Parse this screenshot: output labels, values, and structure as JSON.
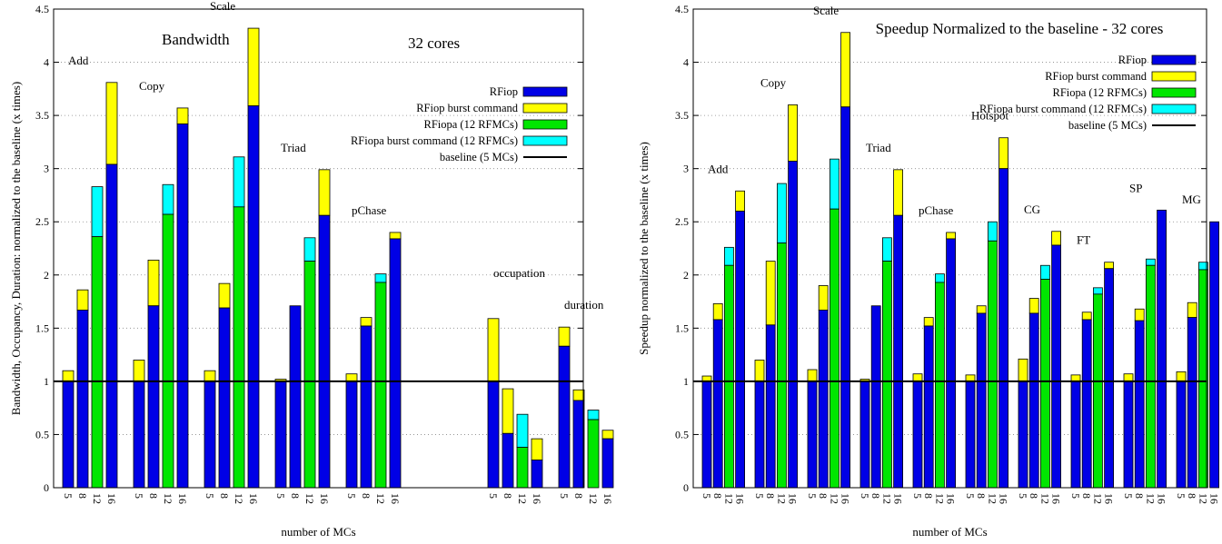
{
  "chart_data": [
    {
      "type": "bar",
      "stacked": true,
      "title": "Bandwidth",
      "subtitle": "32 cores",
      "xlabel": "number of MCs",
      "ylabel": "Bandwidth, Occupancy, Duration: normalized to the baseline (x times)",
      "ylim": [
        0,
        4.5
      ],
      "yticks": [
        "0",
        "0.5",
        "1",
        "1.5",
        "2",
        "2.5",
        "3",
        "3.5",
        "4",
        "4.5"
      ],
      "grid": true,
      "legend_position": "top-right",
      "legend": [
        "RFiop",
        "RFiop burst command",
        "RFiopa (12 RFMCs)",
        "RFiopa burst command (12 RFMCs)",
        "baseline (5 MCs)"
      ],
      "baseline": 1,
      "groups": [
        {
          "label": "Add",
          "bars": [
            {
              "mc": "5",
              "base": 1.0,
              "burst": 1.1,
              "color": "blue"
            },
            {
              "mc": "8",
              "base": 1.67,
              "burst": 1.86,
              "color": "blue"
            },
            {
              "mc": "12",
              "base": 2.36,
              "burst": 2.83,
              "color": "green"
            },
            {
              "mc": "16",
              "base": 3.04,
              "burst": 3.81,
              "color": "blue"
            }
          ]
        },
        {
          "label": "Copy",
          "bars": [
            {
              "mc": "5",
              "base": 1.0,
              "burst": 1.2,
              "color": "blue"
            },
            {
              "mc": "8",
              "base": 1.71,
              "burst": 2.14,
              "color": "blue"
            },
            {
              "mc": "12",
              "base": 2.57,
              "burst": 2.85,
              "color": "green"
            },
            {
              "mc": "16",
              "base": 3.42,
              "burst": 3.57,
              "color": "blue"
            }
          ]
        },
        {
          "label": "Scale",
          "bars": [
            {
              "mc": "5",
              "base": 1.0,
              "burst": 1.1,
              "color": "blue"
            },
            {
              "mc": "8",
              "base": 1.69,
              "burst": 1.92,
              "color": "blue"
            },
            {
              "mc": "12",
              "base": 2.64,
              "burst": 3.11,
              "color": "green"
            },
            {
              "mc": "16",
              "base": 3.59,
              "burst": 4.32,
              "color": "blue"
            }
          ]
        },
        {
          "label": "Triad",
          "bars": [
            {
              "mc": "5",
              "base": 1.0,
              "burst": 1.02,
              "color": "blue"
            },
            {
              "mc": "8",
              "base": 1.71,
              "burst": 1.71,
              "color": "blue"
            },
            {
              "mc": "12",
              "base": 2.13,
              "burst": 2.35,
              "color": "green"
            },
            {
              "mc": "16",
              "base": 2.56,
              "burst": 2.99,
              "color": "blue"
            }
          ]
        },
        {
          "label": "pChase",
          "bars": [
            {
              "mc": "5",
              "base": 1.0,
              "burst": 1.07,
              "color": "blue"
            },
            {
              "mc": "8",
              "base": 1.52,
              "burst": 1.6,
              "color": "blue"
            },
            {
              "mc": "12",
              "base": 1.93,
              "burst": 2.01,
              "color": "green"
            },
            {
              "mc": "16",
              "base": 2.34,
              "burst": 2.4,
              "color": "blue"
            }
          ]
        },
        {
          "label": "",
          "bars": [
            {
              "mc": "",
              "base": 0,
              "burst": 0,
              "color": "blue"
            },
            {
              "mc": "",
              "base": 0,
              "burst": 0,
              "color": "blue"
            },
            {
              "mc": "",
              "base": 0,
              "burst": 0,
              "color": "green"
            },
            {
              "mc": "",
              "base": 0,
              "burst": 0,
              "color": "blue"
            }
          ]
        },
        {
          "label": "occupation",
          "bars": [
            {
              "mc": "5",
              "base": 1.0,
              "burst": 1.59,
              "color": "blue"
            },
            {
              "mc": "8",
              "base": 0.51,
              "burst": 0.93,
              "color": "blue"
            },
            {
              "mc": "12",
              "base": 0.38,
              "burst": 0.69,
              "color": "green"
            },
            {
              "mc": "16",
              "base": 0.26,
              "burst": 0.46,
              "color": "blue"
            }
          ]
        },
        {
          "label": "duration",
          "bars": [
            {
              "mc": "5",
              "base": 1.33,
              "burst": 1.51,
              "color": "blue"
            },
            {
              "mc": "8",
              "base": 0.82,
              "burst": 0.92,
              "color": "blue"
            },
            {
              "mc": "12",
              "base": 0.64,
              "burst": 0.73,
              "color": "green"
            },
            {
              "mc": "16",
              "base": 0.46,
              "burst": 0.54,
              "color": "blue"
            }
          ]
        }
      ]
    },
    {
      "type": "bar",
      "stacked": true,
      "title": "Speedup Normalized to the baseline - 32 cores",
      "xlabel": "number of MCs",
      "ylabel": "Speedup normalized to the baseline (x times)",
      "ylim": [
        0,
        4.5
      ],
      "yticks": [
        "0",
        "0.5",
        "1",
        "1.5",
        "2",
        "2.5",
        "3",
        "3.5",
        "4",
        "4.5"
      ],
      "grid": true,
      "legend_position": "top-right",
      "legend": [
        "RFiop",
        "RFiop burst command",
        "RFiopa (12 RFMCs)",
        "RFiopa burst command (12 RFMCs)",
        "baseline (5 MCs)"
      ],
      "baseline": 1,
      "groups": [
        {
          "label": "Add",
          "bars": [
            {
              "mc": "5",
              "base": 1.0,
              "burst": 1.05,
              "color": "blue"
            },
            {
              "mc": "8",
              "base": 1.58,
              "burst": 1.73,
              "color": "blue"
            },
            {
              "mc": "12",
              "base": 2.09,
              "burst": 2.26,
              "color": "green"
            },
            {
              "mc": "16",
              "base": 2.6,
              "burst": 2.79,
              "color": "blue"
            }
          ]
        },
        {
          "label": "Copy",
          "bars": [
            {
              "mc": "5",
              "base": 1.0,
              "burst": 1.2,
              "color": "blue"
            },
            {
              "mc": "8",
              "base": 1.53,
              "burst": 2.13,
              "color": "blue"
            },
            {
              "mc": "12",
              "base": 2.3,
              "burst": 2.86,
              "color": "green"
            },
            {
              "mc": "16",
              "base": 3.07,
              "burst": 3.6,
              "color": "blue"
            }
          ]
        },
        {
          "label": "Scale",
          "bars": [
            {
              "mc": "5",
              "base": 1.0,
              "burst": 1.11,
              "color": "blue"
            },
            {
              "mc": "8",
              "base": 1.67,
              "burst": 1.9,
              "color": "blue"
            },
            {
              "mc": "12",
              "base": 2.62,
              "burst": 3.09,
              "color": "green"
            },
            {
              "mc": "16",
              "base": 3.58,
              "burst": 4.28,
              "color": "blue"
            }
          ]
        },
        {
          "label": "Triad",
          "bars": [
            {
              "mc": "5",
              "base": 1.0,
              "burst": 1.02,
              "color": "blue"
            },
            {
              "mc": "8",
              "base": 1.71,
              "burst": 1.71,
              "color": "blue"
            },
            {
              "mc": "12",
              "base": 2.13,
              "burst": 2.35,
              "color": "green"
            },
            {
              "mc": "16",
              "base": 2.56,
              "burst": 2.99,
              "color": "blue"
            }
          ]
        },
        {
          "label": "pChase",
          "bars": [
            {
              "mc": "5",
              "base": 1.0,
              "burst": 1.07,
              "color": "blue"
            },
            {
              "mc": "8",
              "base": 1.52,
              "burst": 1.6,
              "color": "blue"
            },
            {
              "mc": "12",
              "base": 1.93,
              "burst": 2.01,
              "color": "green"
            },
            {
              "mc": "16",
              "base": 2.34,
              "burst": 2.4,
              "color": "blue"
            }
          ]
        },
        {
          "label": "Hotspot",
          "bars": [
            {
              "mc": "5",
              "base": 1.0,
              "burst": 1.06,
              "color": "blue"
            },
            {
              "mc": "8",
              "base": 1.64,
              "burst": 1.71,
              "color": "blue"
            },
            {
              "mc": "12",
              "base": 2.32,
              "burst": 2.5,
              "color": "green"
            },
            {
              "mc": "16",
              "base": 3.0,
              "burst": 3.29,
              "color": "blue"
            }
          ]
        },
        {
          "label": "CG",
          "bars": [
            {
              "mc": "5",
              "base": 1.0,
              "burst": 1.21,
              "color": "blue"
            },
            {
              "mc": "8",
              "base": 1.64,
              "burst": 1.78,
              "color": "blue"
            },
            {
              "mc": "12",
              "base": 1.96,
              "burst": 2.09,
              "color": "green"
            },
            {
              "mc": "16",
              "base": 2.28,
              "burst": 2.41,
              "color": "blue"
            }
          ]
        },
        {
          "label": "FT",
          "bars": [
            {
              "mc": "5",
              "base": 1.0,
              "burst": 1.06,
              "color": "blue"
            },
            {
              "mc": "8",
              "base": 1.58,
              "burst": 1.65,
              "color": "blue"
            },
            {
              "mc": "12",
              "base": 1.82,
              "burst": 1.88,
              "color": "green"
            },
            {
              "mc": "16",
              "base": 2.06,
              "burst": 2.12,
              "color": "blue"
            }
          ]
        },
        {
          "label": "SP",
          "bars": [
            {
              "mc": "5",
              "base": 1.0,
              "burst": 1.07,
              "color": "blue"
            },
            {
              "mc": "8",
              "base": 1.57,
              "burst": 1.68,
              "color": "blue"
            },
            {
              "mc": "12",
              "base": 2.09,
              "burst": 2.15,
              "color": "green"
            },
            {
              "mc": "16",
              "base": 2.61,
              "burst": 2.61,
              "color": "blue"
            }
          ]
        },
        {
          "label": "MG",
          "bars": [
            {
              "mc": "5",
              "base": 1.0,
              "burst": 1.09,
              "color": "blue"
            },
            {
              "mc": "8",
              "base": 1.6,
              "burst": 1.74,
              "color": "blue"
            },
            {
              "mc": "12",
              "base": 2.05,
              "burst": 2.12,
              "color": "green"
            },
            {
              "mc": "16",
              "base": 2.5,
              "burst": 2.5,
              "color": "blue"
            }
          ]
        }
      ]
    }
  ],
  "colors": {
    "rfiop": "#0000e6",
    "rfiop_burst": "#ffff00",
    "rfiopa": "#00e600",
    "rfiopa_burst": "#00ffff",
    "baseline": "#000000"
  }
}
